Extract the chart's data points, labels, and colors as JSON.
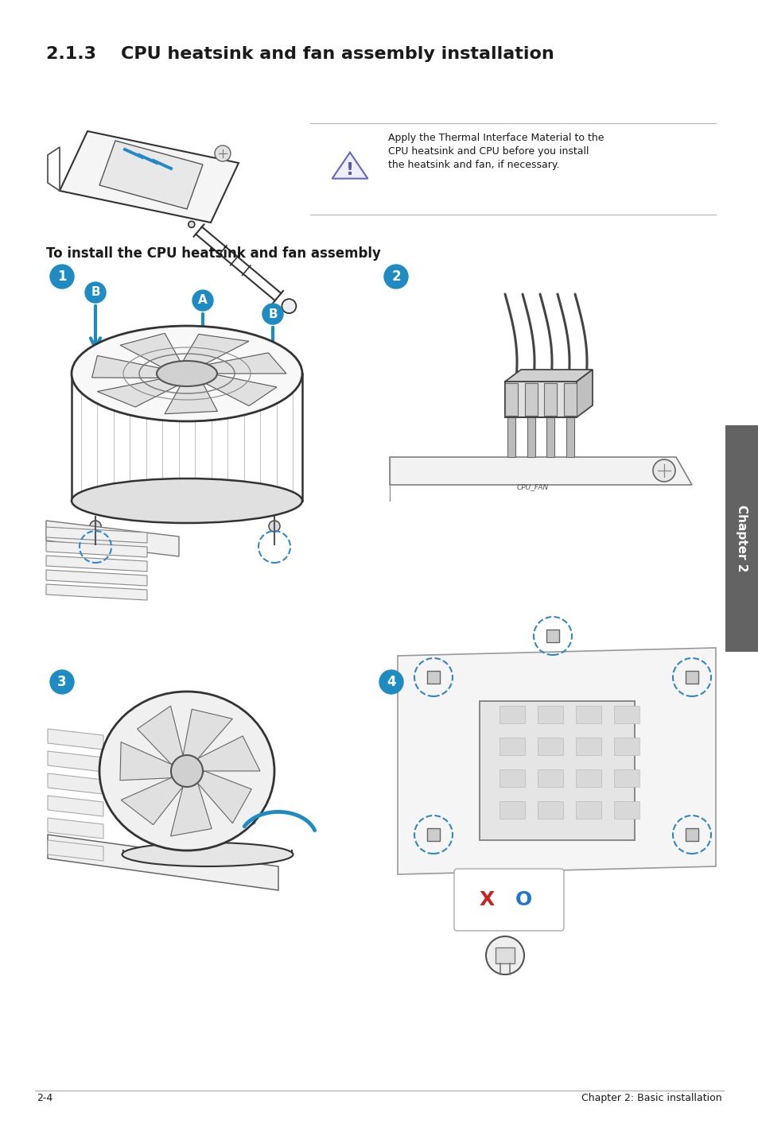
{
  "title_num": "2.1.3",
  "title_text": "CPU heatsink and fan assembly installation",
  "subtitle": "To install the CPU heatsink and fan assembly",
  "warn_text1": "Apply the Thermal Interface Material to the",
  "warn_text2": "CPU heatsink and CPU before you install",
  "warn_text3": "the heatsink and fan, if necessary.",
  "footer_left": "2-4",
  "footer_right": "Chapter 2: Basic installation",
  "chapter_label": "Chapter 2",
  "bg": "#ffffff",
  "black": "#1a1a1a",
  "blue": "#1e8bc3",
  "gray_dark": "#444444",
  "gray_med": "#888888",
  "gray_light": "#cccccc",
  "gray_lighter": "#eeeeee",
  "chapter_bg": "#636363",
  "line_art": "#333333",
  "title_fs": 16,
  "sub_fs": 12,
  "warn_fs": 9,
  "foot_fs": 9
}
